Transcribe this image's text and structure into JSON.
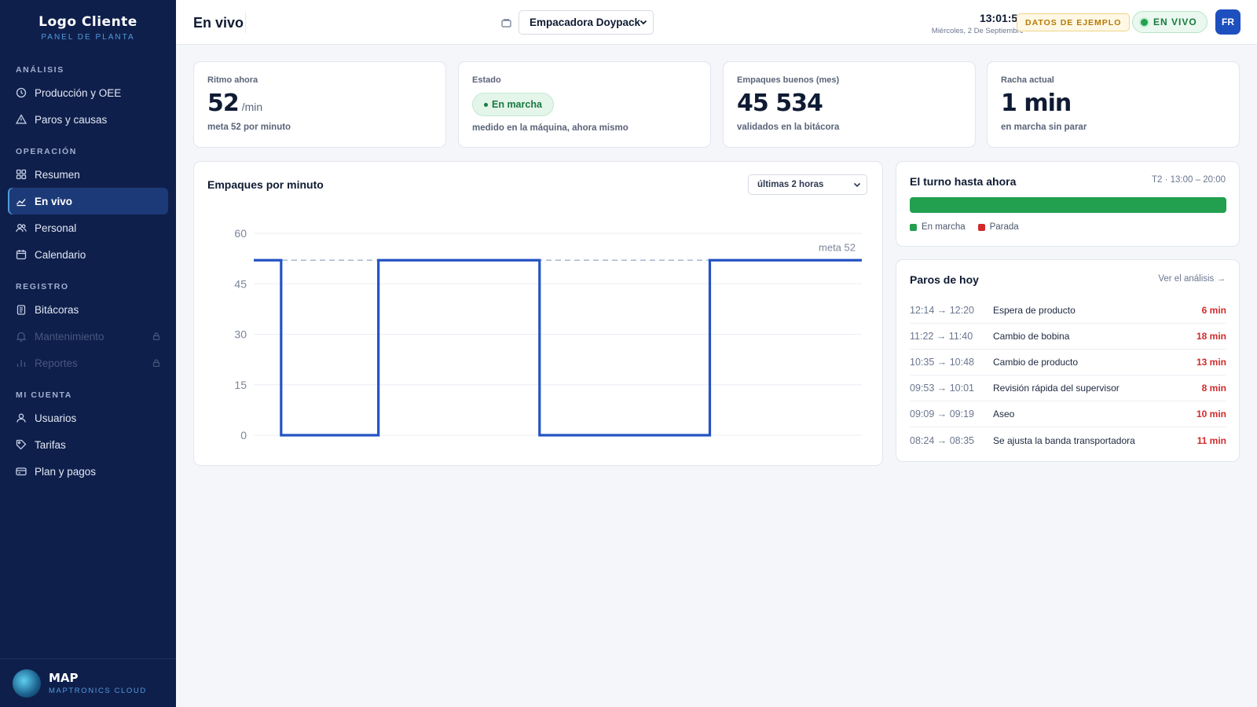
{
  "sidebar": {
    "brand_title": "Logo Cliente",
    "brand_subtitle": "PANEL DE PLANTA",
    "sections": [
      {
        "label": "ANÁLISIS",
        "items": [
          {
            "label": "Producción y OEE",
            "icon": "clock-icon"
          },
          {
            "label": "Paros y causas",
            "icon": "warning-icon"
          }
        ]
      },
      {
        "label": "OPERACIÓN",
        "items": [
          {
            "label": "Resumen",
            "icon": "grid-icon"
          },
          {
            "label": "En vivo",
            "icon": "chart-icon",
            "active": true
          },
          {
            "label": "Personal",
            "icon": "users-icon"
          },
          {
            "label": "Calendario",
            "icon": "calendar-icon"
          }
        ]
      },
      {
        "label": "REGISTRO",
        "items": [
          {
            "label": "Bitácoras",
            "icon": "clipboard-icon"
          },
          {
            "label": "Mantenimiento",
            "icon": "bell-icon",
            "locked": true
          },
          {
            "label": "Reportes",
            "icon": "bar-chart-icon",
            "locked": true
          }
        ]
      },
      {
        "label": "MI CUENTA",
        "items": [
          {
            "label": "Usuarios",
            "icon": "user-icon"
          },
          {
            "label": "Tarifas",
            "icon": "tag-icon"
          },
          {
            "label": "Plan y pagos",
            "icon": "card-icon"
          }
        ]
      }
    ],
    "footer_title": "MAP",
    "footer_subtitle": "MAPTRONICS CLOUD"
  },
  "header": {
    "title": "En vivo",
    "machine": "Empacadora Doypack",
    "time": "13:01:55",
    "date": "Miércoles, 2 De Septiembre",
    "demo_badge": "DATOS DE EJEMPLO",
    "live_badge": "EN VIVO",
    "avatar": "FR"
  },
  "kpis": {
    "rate": {
      "label": "Ritmo ahora",
      "value": "52",
      "unit": "/min",
      "sub": "meta 52 por minuto"
    },
    "status": {
      "label": "Estado",
      "value": "En marcha",
      "sub": "medido en la máquina, ahora mismo"
    },
    "good": {
      "label": "Empaques buenos (mes)",
      "value": "45 534",
      "sub": "validados en la bitácora"
    },
    "streak": {
      "label": "Racha actual",
      "value": "1 min",
      "sub": "en marcha sin parar"
    }
  },
  "chart_card": {
    "title": "Empaques por minuto",
    "range": "últimas 2 horas"
  },
  "chart_data": {
    "type": "line",
    "title": "Empaques por minuto",
    "ylim": [
      0,
      60
    ],
    "yticks": [
      0,
      15,
      30,
      45,
      60
    ],
    "target": 52,
    "target_label": "meta 52",
    "grid": true,
    "x": [
      0,
      4.5,
      4.5,
      20.5,
      20.5,
      47,
      47,
      75,
      75,
      100
    ],
    "y": [
      52,
      52,
      0,
      0,
      52,
      52,
      0,
      0,
      52,
      52
    ]
  },
  "shift": {
    "title": "El turno hasta ahora",
    "range": "T2 · 13:00 – 20:00",
    "running_fraction": 1.0,
    "legend": [
      {
        "label": "En marcha",
        "color": "#22a04f"
      },
      {
        "label": "Parada",
        "color": "#d12a2a"
      }
    ]
  },
  "stops": {
    "title": "Paros de hoy",
    "link": "Ver el análisis →",
    "rows": [
      {
        "time": "12:14 → 12:20",
        "cause": "Espera de producto",
        "dur": "6 min"
      },
      {
        "time": "11:22 → 11:40",
        "cause": "Cambio de bobina",
        "dur": "18 min"
      },
      {
        "time": "10:35 → 10:48",
        "cause": "Cambio de producto",
        "dur": "13 min"
      },
      {
        "time": "09:53 → 10:01",
        "cause": "Revisión rápida del supervisor",
        "dur": "8 min"
      },
      {
        "time": "09:09 → 09:19",
        "cause": "Aseo",
        "dur": "10 min"
      },
      {
        "time": "08:24 → 08:35",
        "cause": "Se ajusta la banda transportadora",
        "dur": "11 min"
      }
    ]
  }
}
